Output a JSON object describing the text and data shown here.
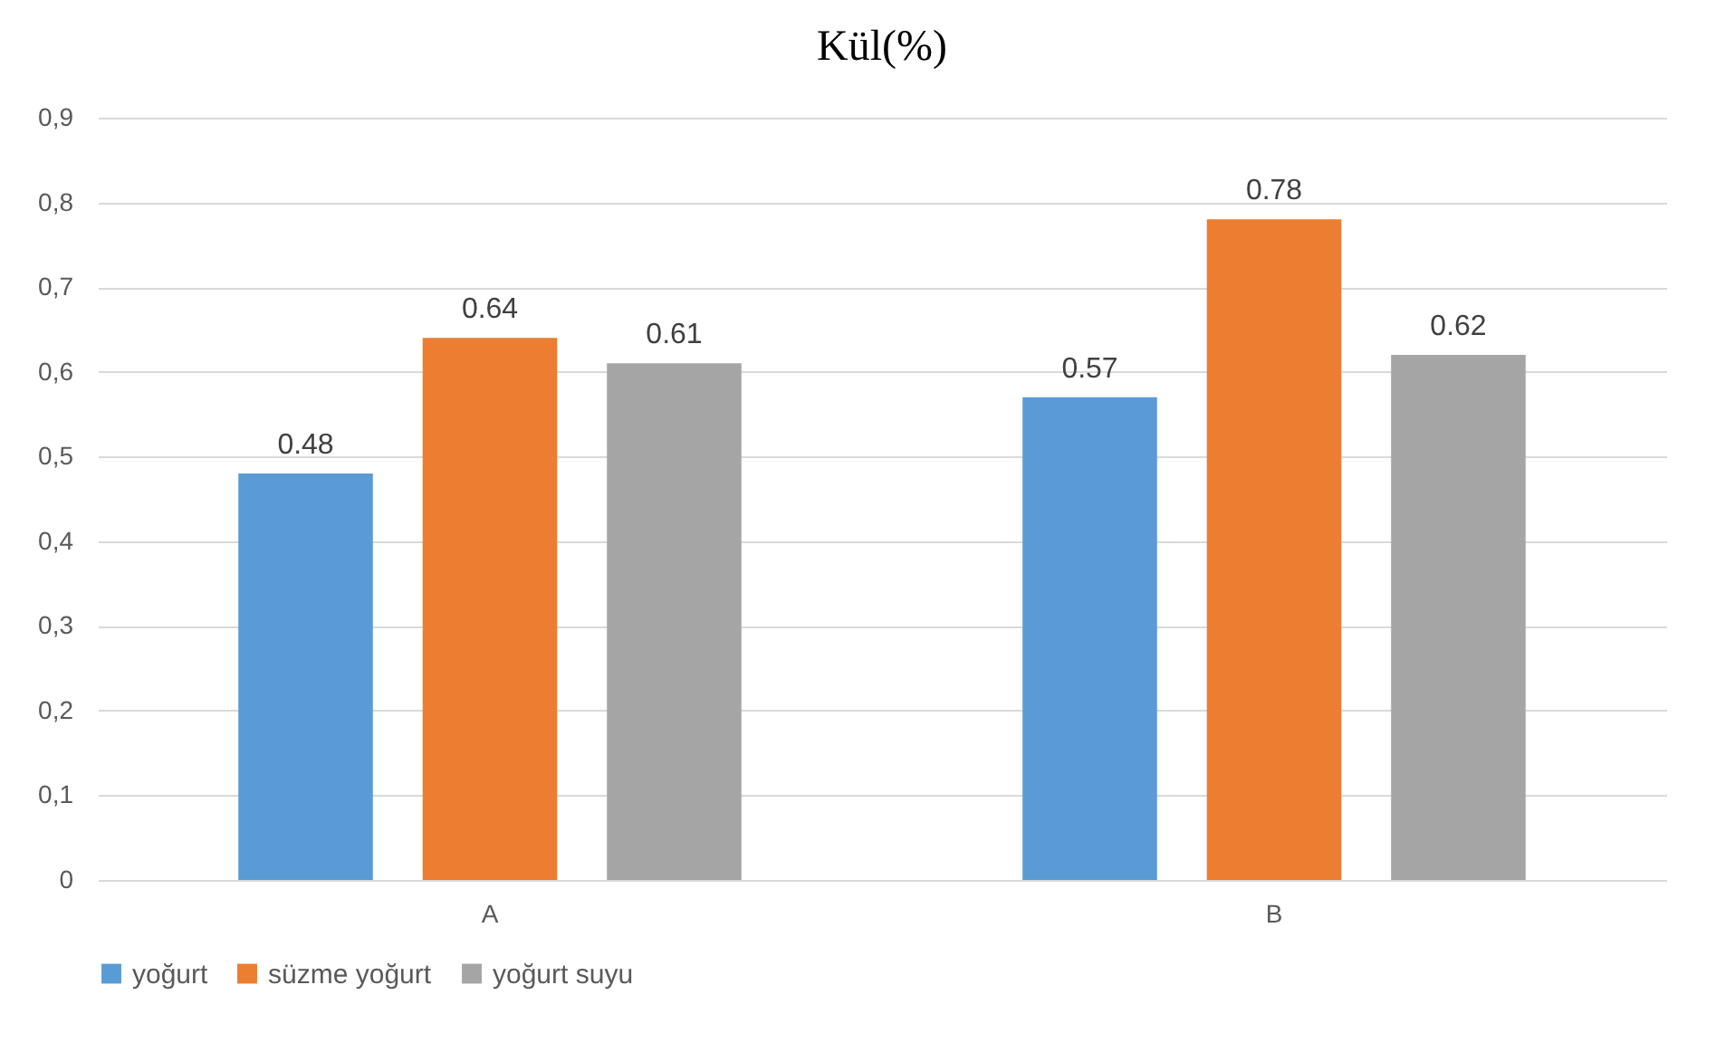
{
  "chart_data": {
    "type": "bar",
    "title": "Kül(%)",
    "categories": [
      "A",
      "B"
    ],
    "series": [
      {
        "name": "yoğurt",
        "color": "#5b9bd5",
        "values": [
          0.48,
          0.57
        ]
      },
      {
        "name": "süzme yoğurt",
        "color": "#ed7d31",
        "values": [
          0.64,
          0.78
        ]
      },
      {
        "name": "yoğurt suyu",
        "color": "#a5a5a5",
        "values": [
          0.61,
          0.62
        ]
      }
    ],
    "ylim": [
      0,
      0.9
    ],
    "yticks": [
      0,
      {
        "value": 0.1,
        "label": "0,1"
      },
      {
        "value": 0.2,
        "label": "0,2"
      },
      {
        "value": 0.3,
        "label": "0,3"
      },
      {
        "value": 0.4,
        "label": "0,4"
      },
      {
        "value": 0.5,
        "label": "0,5"
      },
      {
        "value": 0.6,
        "label": "0,6"
      },
      {
        "value": 0.7,
        "label": "0,7"
      },
      {
        "value": 0.8,
        "label": "0,8"
      },
      {
        "value": 0.9,
        "label": "0,9"
      }
    ],
    "grid": "y",
    "legend": "bottom",
    "data_labels": true
  }
}
